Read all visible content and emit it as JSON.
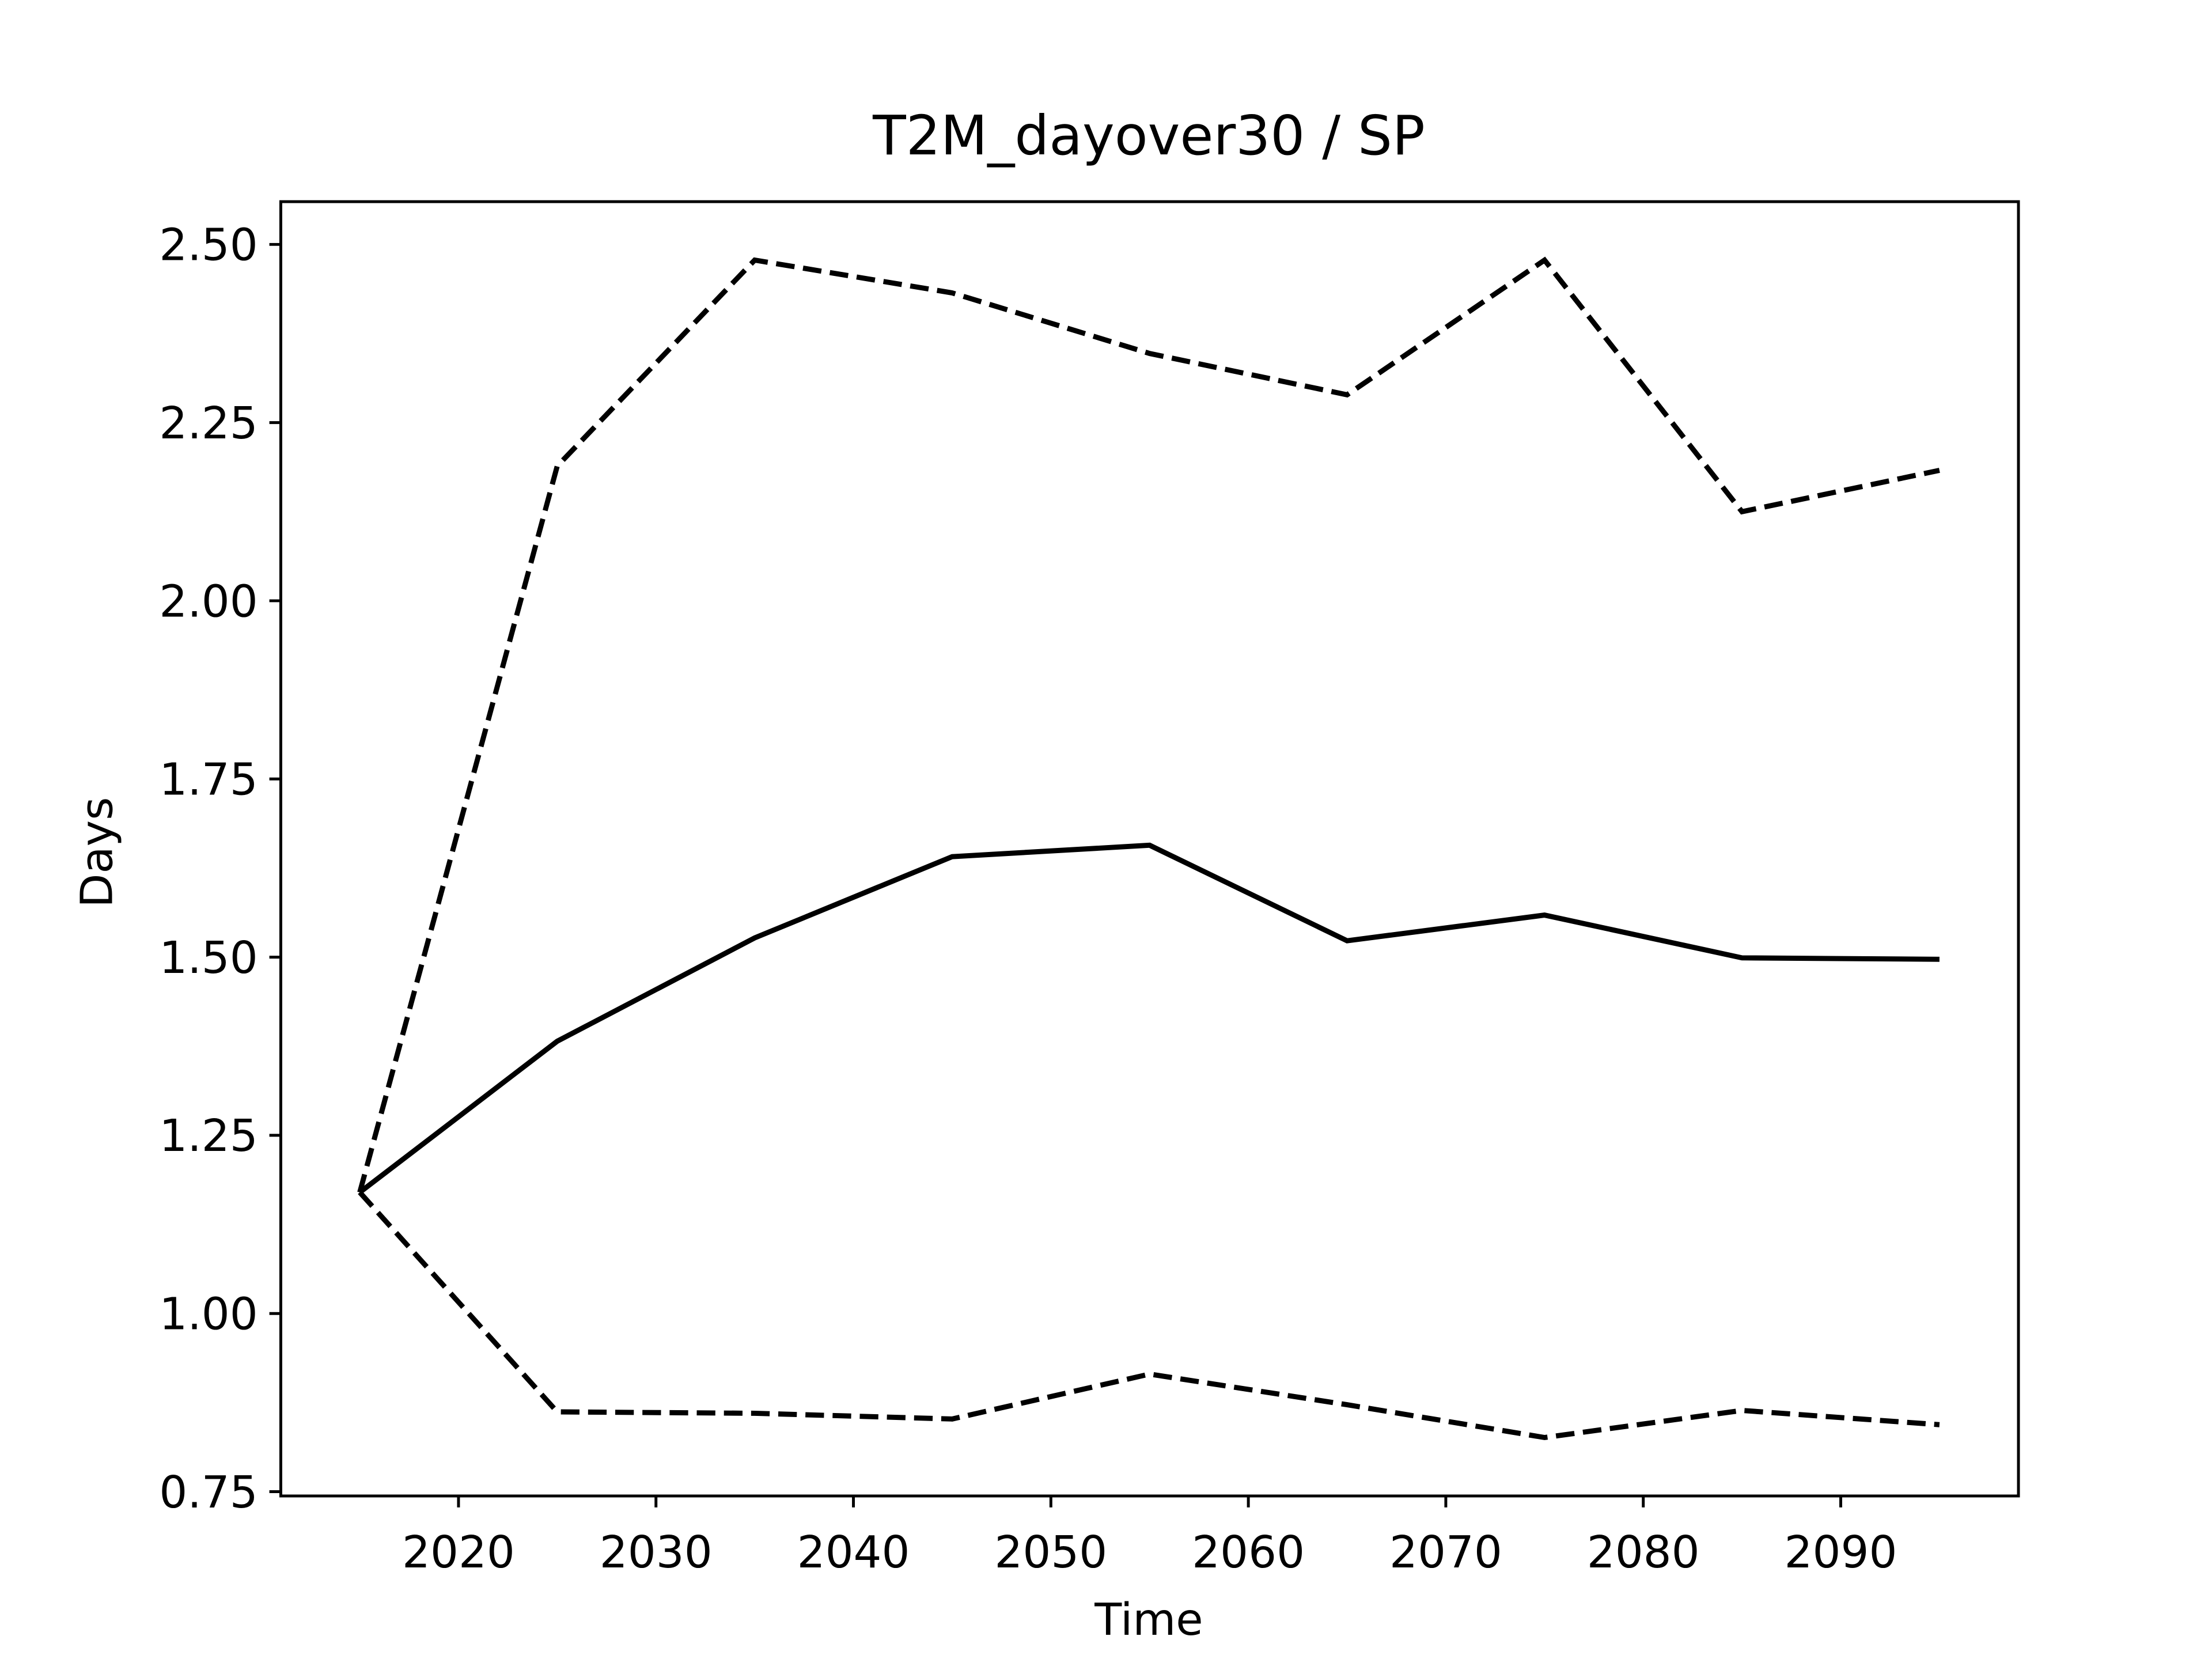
{
  "chart_data": {
    "type": "line",
    "title": "T2M_dayover30 / SP",
    "x_label": "Time",
    "y_label": "Days",
    "x": [
      2015,
      2025,
      2035,
      2045,
      2055,
      2065,
      2075,
      2085,
      2095
    ],
    "series": [
      {
        "color": "#000000",
        "line_style": "dashed",
        "values": [
          1.17,
          2.189,
          2.478,
          2.432,
          2.347,
          2.289,
          2.478,
          2.125,
          2.183
        ]
      },
      {
        "color": "#000000",
        "line_style": "solid",
        "values": [
          1.17,
          1.382,
          1.527,
          1.641,
          1.657,
          1.523,
          1.559,
          1.499,
          1.497
        ]
      },
      {
        "color": "#000000",
        "line_style": "dashed",
        "values": [
          1.17,
          0.862,
          0.86,
          0.852,
          0.915,
          0.872,
          0.826,
          0.864,
          0.844
        ]
      }
    ],
    "xlim": [
      2011,
      2099
    ],
    "ylim": [
      0.744,
      2.56
    ],
    "xticks": [
      2020,
      2030,
      2040,
      2050,
      2060,
      2070,
      2080,
      2090
    ],
    "yticks": [
      {
        "value": 0.75,
        "label": "0.75"
      },
      {
        "value": 1.0,
        "label": "1.00"
      },
      {
        "value": 1.25,
        "label": "1.25"
      },
      {
        "value": 1.5,
        "label": "1.50"
      },
      {
        "value": 1.75,
        "label": "1.75"
      },
      {
        "value": 2.0,
        "label": "2.00"
      },
      {
        "value": 2.25,
        "label": "2.25"
      },
      {
        "value": 2.5,
        "label": "2.50"
      }
    ],
    "grid": false
  }
}
